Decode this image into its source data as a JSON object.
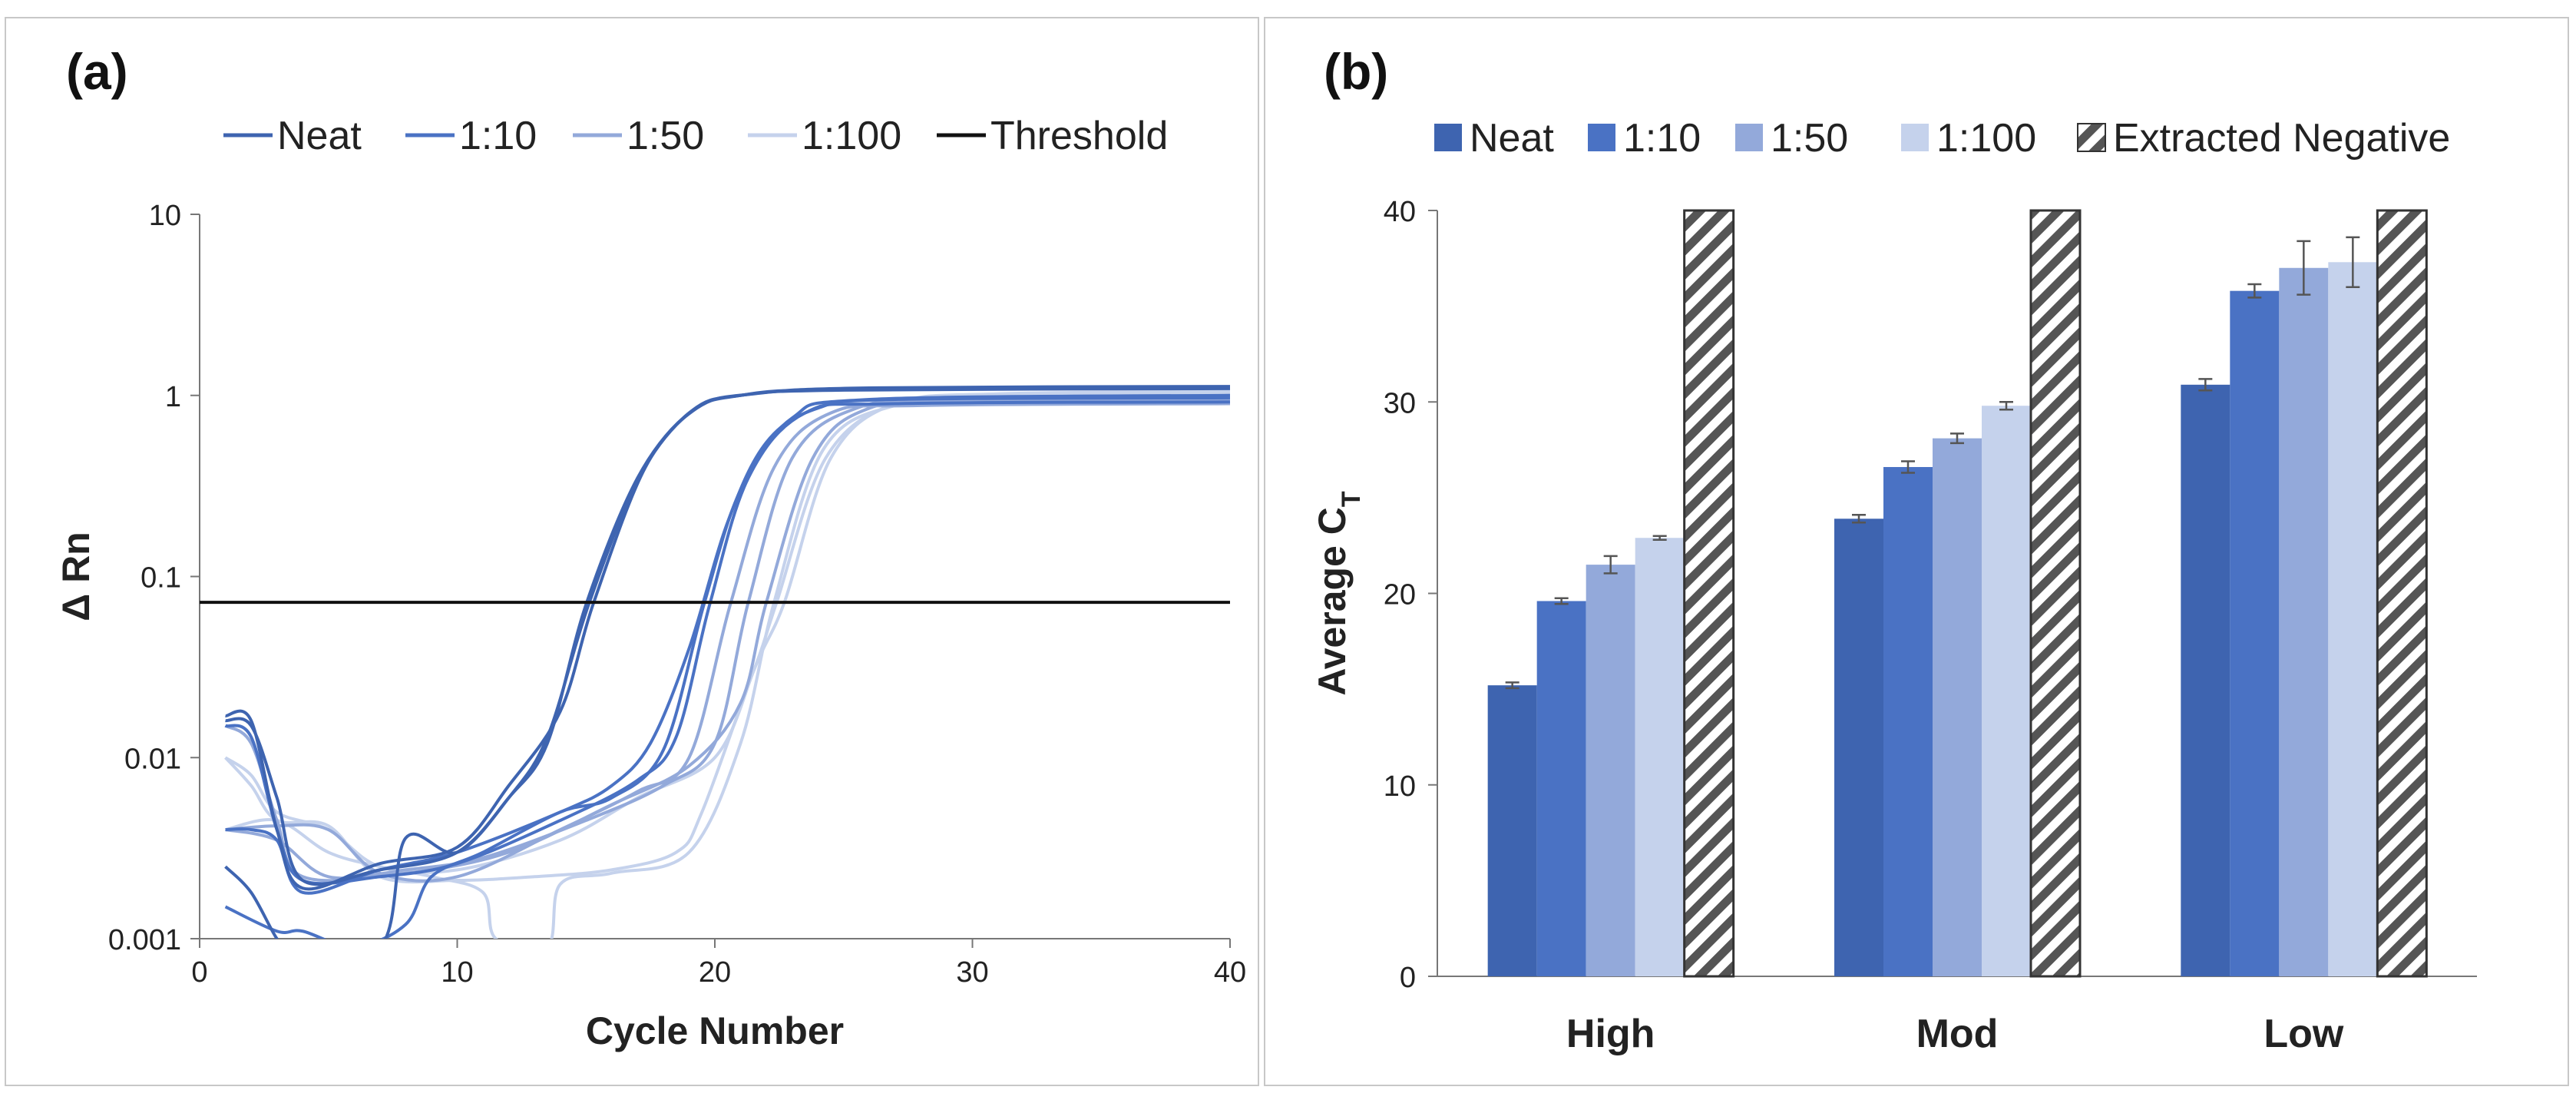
{
  "chart_data": [
    {
      "panel_label": "(a)",
      "type": "line",
      "xlabel": "Cycle Number",
      "ylabel": "Δ Rn",
      "xlim": [
        0,
        40
      ],
      "ylim": [
        0.001,
        10
      ],
      "yscale": "log",
      "x_ticks": [
        "0",
        "10",
        "20",
        "30",
        "40"
      ],
      "y_ticks": [
        "0.001",
        "0.01",
        "0.1",
        "1",
        "10"
      ],
      "legend": [
        "Neat",
        "1:10",
        "1:50",
        "1:100",
        "Threshold"
      ],
      "colors": {
        "Neat": "#3e64b0",
        "1:10": "#4a72c4",
        "1:50": "#93a9da",
        "1:100": "#c5d2ec",
        "Threshold": "#111111"
      },
      "threshold": 0.072,
      "series": [
        {
          "name": "Neat",
          "color": "#3e64b0",
          "points": [
            [
              1,
              0.016
            ],
            [
              2,
              0.015
            ],
            [
              3,
              0.006
            ],
            [
              4,
              0.0021
            ],
            [
              7,
              0.0024
            ],
            [
              10,
              0.003
            ],
            [
              12,
              0.006
            ],
            [
              13.5,
              0.012
            ],
            [
              15,
              0.07
            ],
            [
              17,
              0.35
            ],
            [
              19,
              0.8
            ],
            [
              21,
              1.0
            ],
            [
              25,
              1.08
            ],
            [
              40,
              1.1
            ]
          ]
        },
        {
          "name": "Neat",
          "color": "#3e64b0",
          "points": [
            [
              1,
              0.017
            ],
            [
              2,
              0.016
            ],
            [
              3,
              0.004
            ],
            [
              4,
              0.0019
            ],
            [
              7,
              0.0026
            ],
            [
              10,
              0.0032
            ],
            [
              12,
              0.007
            ],
            [
              14,
              0.018
            ],
            [
              15.3,
              0.072
            ],
            [
              17.3,
              0.4
            ],
            [
              19.3,
              0.85
            ],
            [
              21.5,
              1.02
            ],
            [
              26,
              1.1
            ],
            [
              40,
              1.12
            ]
          ]
        },
        {
          "name": "Neat",
          "color": "#3e64b0",
          "points": [
            [
              1,
              0.0025
            ],
            [
              2,
              0.0018
            ],
            [
              3,
              0.001
            ],
            [
              3.5,
              0.0009
            ],
            [
              7,
              0.0009
            ],
            [
              8,
              0.0036
            ],
            [
              10,
              0.003
            ],
            [
              12,
              0.006
            ],
            [
              13.5,
              0.013
            ],
            [
              15.1,
              0.07
            ],
            [
              17.1,
              0.36
            ],
            [
              19.1,
              0.82
            ],
            [
              21,
              1.0
            ],
            [
              25,
              1.07
            ],
            [
              40,
              1.09
            ]
          ]
        },
        {
          "name": "1:10",
          "color": "#4a72c4",
          "points": [
            [
              1,
              0.004
            ],
            [
              2,
              0.004
            ],
            [
              3,
              0.0035
            ],
            [
              4,
              0.0018
            ],
            [
              7,
              0.0024
            ],
            [
              10,
              0.003
            ],
            [
              14,
              0.005
            ],
            [
              16,
              0.007
            ],
            [
              17.5,
              0.012
            ],
            [
              19,
              0.04
            ],
            [
              20.5,
              0.2
            ],
            [
              22,
              0.55
            ],
            [
              24,
              0.85
            ],
            [
              27,
              0.95
            ],
            [
              40,
              0.97
            ]
          ]
        },
        {
          "name": "1:10",
          "color": "#4a72c4",
          "points": [
            [
              1,
              0.0015
            ],
            [
              3,
              0.0011
            ],
            [
              4,
              0.0011
            ],
            [
              6,
              0.0009
            ],
            [
              8,
              0.0012
            ],
            [
              9,
              0.0022
            ],
            [
              11,
              0.003
            ],
            [
              14,
              0.005
            ],
            [
              16,
              0.006
            ],
            [
              18,
              0.011
            ],
            [
              19.6,
              0.072
            ],
            [
              21,
              0.3
            ],
            [
              23,
              0.75
            ],
            [
              26,
              0.95
            ],
            [
              40,
              1.0
            ]
          ]
        },
        {
          "name": "1:10",
          "color": "#4a72c4",
          "points": [
            [
              1,
              0.015
            ],
            [
              2,
              0.013
            ],
            [
              3,
              0.004
            ],
            [
              4,
              0.0021
            ],
            [
              7,
              0.0022
            ],
            [
              10,
              0.0026
            ],
            [
              14,
              0.0045
            ],
            [
              17,
              0.0075
            ],
            [
              18.5,
              0.013
            ],
            [
              19.8,
              0.07
            ],
            [
              21.3,
              0.35
            ],
            [
              23.5,
              0.8
            ],
            [
              27,
              0.9
            ],
            [
              40,
              0.92
            ]
          ]
        },
        {
          "name": "1:50",
          "color": "#93a9da",
          "points": [
            [
              1,
              0.004
            ],
            [
              3,
              0.0042
            ],
            [
              5,
              0.004
            ],
            [
              7,
              0.0023
            ],
            [
              10,
              0.0022
            ],
            [
              14,
              0.004
            ],
            [
              17,
              0.0065
            ],
            [
              19,
              0.01
            ],
            [
              20.6,
              0.07
            ],
            [
              22.3,
              0.4
            ],
            [
              24.5,
              0.8
            ],
            [
              28,
              0.88
            ],
            [
              40,
              0.9
            ]
          ]
        },
        {
          "name": "1:50",
          "color": "#93a9da",
          "points": [
            [
              1,
              0.004
            ],
            [
              3,
              0.0035
            ],
            [
              5,
              0.0022
            ],
            [
              8,
              0.0024
            ],
            [
              11,
              0.0028
            ],
            [
              15,
              0.0045
            ],
            [
              18,
              0.007
            ],
            [
              20,
              0.012
            ],
            [
              21.3,
              0.072
            ],
            [
              23,
              0.45
            ],
            [
              25.5,
              0.85
            ],
            [
              29,
              0.93
            ],
            [
              40,
              0.95
            ]
          ]
        },
        {
          "name": "1:50",
          "color": "#93a9da",
          "points": [
            [
              1,
              0.015
            ],
            [
              2,
              0.012
            ],
            [
              3,
              0.0045
            ],
            [
              4,
              0.0022
            ],
            [
              8,
              0.0023
            ],
            [
              12,
              0.003
            ],
            [
              16,
              0.0055
            ],
            [
              19,
              0.009
            ],
            [
              21,
              0.02
            ],
            [
              22,
              0.072
            ],
            [
              23.8,
              0.45
            ],
            [
              26,
              0.85
            ],
            [
              30,
              0.97
            ],
            [
              40,
              1.0
            ]
          ]
        },
        {
          "name": "1:100",
          "color": "#c5d2ec",
          "points": [
            [
              1,
              0.01
            ],
            [
              2,
              0.007
            ],
            [
              3,
              0.0045
            ],
            [
              5,
              0.0042
            ],
            [
              7,
              0.0022
            ],
            [
              10,
              0.0021
            ],
            [
              13,
              0.0022
            ],
            [
              16,
              0.0024
            ],
            [
              18.5,
              0.003
            ],
            [
              19.5,
              0.005
            ],
            [
              21.5,
              0.03
            ],
            [
              22.7,
              0.072
            ],
            [
              24.5,
              0.45
            ],
            [
              27,
              0.9
            ],
            [
              31,
              1.0
            ],
            [
              40,
              1.02
            ]
          ]
        },
        {
          "name": "1:100",
          "color": "#c5d2ec",
          "points": [
            [
              1,
              0.004
            ],
            [
              3,
              0.0045
            ],
            [
              5,
              0.003
            ],
            [
              7,
              0.0025
            ],
            [
              9,
              0.0022
            ],
            [
              11,
              0.0018
            ],
            [
              11.5,
              0.001
            ],
            [
              13.5,
              0.0009
            ],
            [
              14,
              0.002
            ],
            [
              16,
              0.0023
            ],
            [
              19,
              0.003
            ],
            [
              21,
              0.012
            ],
            [
              22.3,
              0.072
            ],
            [
              24.2,
              0.5
            ],
            [
              27,
              0.88
            ],
            [
              31,
              0.97
            ],
            [
              40,
              1.0
            ]
          ]
        },
        {
          "name": "1:100",
          "color": "#c5d2ec",
          "points": [
            [
              1,
              0.01
            ],
            [
              2,
              0.008
            ],
            [
              3,
              0.005
            ],
            [
              5,
              0.004
            ],
            [
              7,
              0.0025
            ],
            [
              10,
              0.0024
            ],
            [
              14,
              0.0035
            ],
            [
              17,
              0.006
            ],
            [
              20,
              0.01
            ],
            [
              21.5,
              0.03
            ],
            [
              22.4,
              0.072
            ],
            [
              24.3,
              0.45
            ],
            [
              27,
              0.9
            ],
            [
              31,
              1.02
            ],
            [
              40,
              1.05
            ]
          ]
        }
      ]
    },
    {
      "panel_label": "(b)",
      "type": "bar",
      "categories": [
        "High",
        "Mod",
        "Low"
      ],
      "ylabel": "Average C",
      "ylabel_sub": "T",
      "ylim": [
        0,
        40
      ],
      "y_ticks": [
        "0",
        "10",
        "20",
        "30",
        "40"
      ],
      "legend": [
        "Neat",
        "1:10",
        "1:50",
        "1:100",
        "Extracted Negative"
      ],
      "series": [
        {
          "name": "Neat",
          "color": "#3e64b0",
          "values": [
            15.2,
            23.9,
            30.9
          ],
          "errors": [
            0.15,
            0.2,
            0.3
          ]
        },
        {
          "name": "1:10",
          "color": "#4a72c4",
          "values": [
            19.6,
            26.6,
            35.8
          ],
          "errors": [
            0.15,
            0.3,
            0.35
          ]
        },
        {
          "name": "1:50",
          "color": "#93a9da",
          "values": [
            21.5,
            28.1,
            37.0
          ],
          "errors": [
            0.45,
            0.25,
            1.4
          ]
        },
        {
          "name": "1:100",
          "color": "#c5d2ec",
          "values": [
            22.9,
            29.8,
            37.3
          ],
          "errors": [
            0.1,
            0.2,
            1.3
          ]
        },
        {
          "name": "Extracted Negative",
          "color": "hatch",
          "values": [
            40,
            40,
            40
          ],
          "errors": [
            0,
            0,
            0
          ]
        }
      ]
    }
  ]
}
